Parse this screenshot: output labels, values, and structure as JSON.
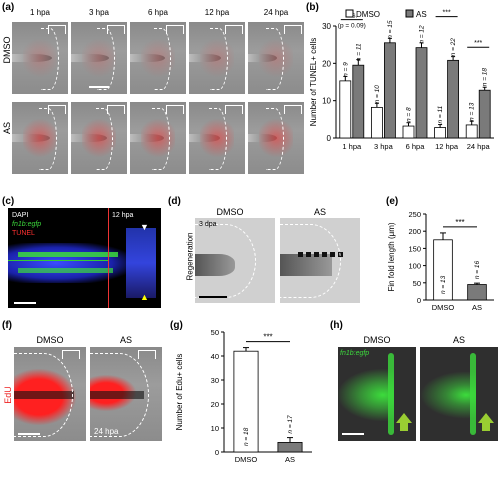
{
  "panels": {
    "a": {
      "label": "(a)",
      "timepoints": [
        "1 hpa",
        "3 hpa",
        "6 hpa",
        "12 hpa",
        "24 hpa"
      ],
      "rows": [
        "DMSO",
        "AS"
      ]
    },
    "b": {
      "label": "(b)"
    },
    "c": {
      "label": "(c)",
      "legend": [
        "DAPI",
        "fn1b:egfp",
        "TUNEL"
      ],
      "time": "12 hpa"
    },
    "d": {
      "label": "(d)",
      "conditions": [
        "DMSO",
        "AS"
      ],
      "row": "Regeneration",
      "time": "3 dpa"
    },
    "e": {
      "label": "(e)"
    },
    "f": {
      "label": "(f)",
      "conditions": [
        "DMSO",
        "AS"
      ],
      "row": "EdU",
      "time": "24 hpa"
    },
    "g": {
      "label": "(g)"
    },
    "h": {
      "label": "(h)",
      "conditions": [
        "DMSO",
        "AS"
      ],
      "legend": "fn1b:egfp"
    }
  },
  "colors": {
    "dmso": "#ffffff",
    "as": "#7a7a7a",
    "tunel": "#ff2a2a",
    "edu": "#ff2020",
    "egfp": "#3cdc3c",
    "dapi": "#2233dd",
    "arrow": "#9acd32"
  },
  "chart_data": [
    {
      "id": "b",
      "type": "bar",
      "ylabel": "Number of TUNEL+ cells",
      "ylim": [
        0,
        30
      ],
      "yticks": [
        0,
        10,
        20,
        30
      ],
      "categories": [
        "1 hpa",
        "3 hpa",
        "6 hpa",
        "12 hpa",
        "24 hpa"
      ],
      "series": [
        {
          "name": "DMSO",
          "values": [
            15.3,
            8.2,
            3.2,
            2.8,
            3.5
          ],
          "errors": [
            1.2,
            1.1,
            0.9,
            0.8,
            1.0
          ],
          "n": [
            "n = 9",
            "n = 10",
            "n = 8",
            "n = 11",
            "n = 13"
          ]
        },
        {
          "name": "AS",
          "values": [
            19.5,
            25.5,
            24.2,
            20.8,
            12.8
          ],
          "errors": [
            1.5,
            1.2,
            1.3,
            1.0,
            0.8
          ],
          "n": [
            "n = 11",
            "n = 15",
            "n = 12",
            "n = 22",
            "n = 18"
          ]
        }
      ],
      "significance": [
        "n.s.",
        "***",
        "***",
        "***",
        "***"
      ],
      "annotation": "(p = 0.09)"
    },
    {
      "id": "e",
      "type": "bar",
      "ylabel": "Fin fold length (μm)",
      "ylim": [
        0,
        250
      ],
      "yticks": [
        0,
        50,
        100,
        150,
        200,
        250
      ],
      "categories": [
        "DMSO",
        "AS"
      ],
      "values": [
        175,
        45
      ],
      "errors": [
        20,
        4
      ],
      "n": [
        "n = 13",
        "n = 16"
      ],
      "significance": "***"
    },
    {
      "id": "g",
      "type": "bar",
      "ylabel": "Number of Edu+ cells",
      "ylim": [
        0,
        50
      ],
      "yticks": [
        0,
        10,
        20,
        30,
        40,
        50
      ],
      "categories": [
        "DMSO",
        "AS"
      ],
      "values": [
        42,
        4
      ],
      "errors": [
        1.5,
        2
      ],
      "n": [
        "n = 18",
        "n = 17"
      ],
      "significance": "***"
    }
  ]
}
